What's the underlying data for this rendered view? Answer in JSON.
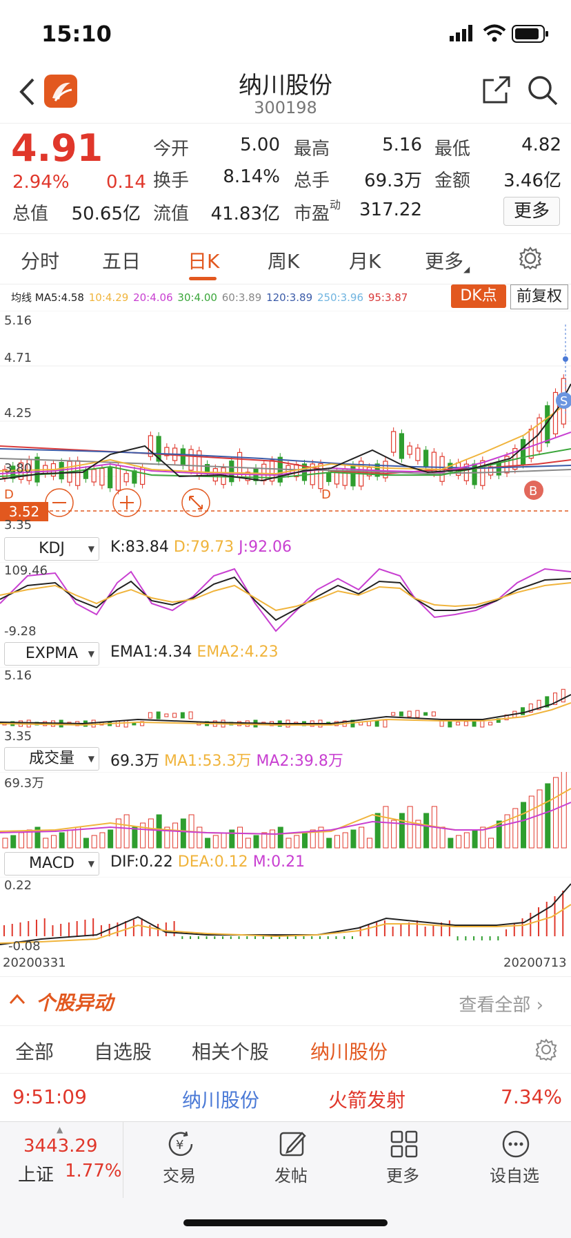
{
  "status": {
    "time": "15:10"
  },
  "header": {
    "title": "纳川股份",
    "code": "300198"
  },
  "quote": {
    "price": "4.91",
    "change_pct": "2.94%",
    "change": "0.14",
    "fields": [
      {
        "label": "今开",
        "value": "5.00",
        "red": true
      },
      {
        "label": "最高",
        "value": "5.16",
        "red": true
      },
      {
        "label": "最低",
        "value": "4.82",
        "red": true
      },
      {
        "label": "换手",
        "value": "8.14%"
      },
      {
        "label": "总手",
        "value": "69.3万"
      },
      {
        "label": "金额",
        "value": "3.46亿"
      },
      {
        "label": "总值",
        "value": "50.65亿"
      },
      {
        "label": "流值",
        "value": "41.83亿"
      },
      {
        "label": "市盈",
        "value": "317.22",
        "sup": "动"
      }
    ],
    "more_label": "更多"
  },
  "tabs": [
    "分时",
    "五日",
    "日K",
    "周K",
    "月K",
    "更多",
    ""
  ],
  "active_tab": "日K",
  "ma_line": {
    "items": [
      {
        "text": "均线 MA5:4.58",
        "color": "#222222"
      },
      {
        "text": "10:4.29",
        "color": "#f0b43c"
      },
      {
        "text": "20:4.06",
        "color": "#c83fd1"
      },
      {
        "text": "30:4.00",
        "color": "#3aa63a"
      },
      {
        "text": "60:3.89",
        "color": "#888888"
      },
      {
        "text": "120:3.89",
        "color": "#3b5ba8"
      },
      {
        "text": "250:3.96",
        "color": "#6fb4e0"
      },
      {
        "text": "95:3.87",
        "color": "#d93a3a"
      }
    ],
    "dk_label": "DK点",
    "adjust_label": "前复权"
  },
  "kline": {
    "y_max": "5.16",
    "y_mid1": "4.71",
    "y_mid2": "4.25",
    "y_mid3": "3.80",
    "y_min": "3.35",
    "current_line": "3.52",
    "marker_d": "D",
    "marker_b": "B",
    "marker_s": "S"
  },
  "kdj": {
    "name": "KDJ",
    "k": "K:83.84",
    "d": "D:79.73",
    "j": "J:92.06",
    "top": "109.46",
    "bottom": "-9.28"
  },
  "expma": {
    "name": "EXPMA",
    "ema1": "EMA1:4.34",
    "ema2": "EMA2:4.23",
    "top": "5.16",
    "bottom": "3.35"
  },
  "volume": {
    "name": "成交量",
    "v": "69.3万",
    "ma1": "MA1:53.3万",
    "ma2": "MA2:39.8万",
    "top": "69.3万"
  },
  "macd": {
    "name": "MACD",
    "dif": "DIF:0.22",
    "dea": "DEA:0.12",
    "m": "M:0.21",
    "top": "0.22",
    "bottom": "-0.08"
  },
  "dates": {
    "start": "20200331",
    "end": "20200713"
  },
  "anomaly": {
    "title": "个股异动",
    "view_all": "查看全部"
  },
  "subtabs": [
    "全部",
    "自选股",
    "相关个股",
    "纳川股份"
  ],
  "alert": {
    "time": "9:51:09",
    "name": "纳川股份",
    "event": "火箭发射",
    "pct": "7.34%"
  },
  "bottom": {
    "index_value": "3443.29",
    "index_name": "上证",
    "index_pct": "1.77%",
    "items": [
      "交易",
      "发帖",
      "更多",
      "设自选"
    ]
  },
  "colors": {
    "accent": "#e2581f",
    "up": "#e0372b",
    "down": "#2e9e2e"
  }
}
